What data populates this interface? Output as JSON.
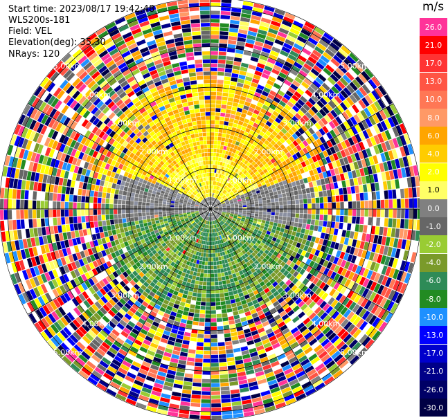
{
  "header": {
    "start_time": "Start time: 2023/08/17 19:42:48",
    "instrument": "WLS200s-181",
    "field": "Field: VEL",
    "elevation": "Elevation(deg): 35.30",
    "nrays": "NRays: 120"
  },
  "chart_data": {
    "type": "heatmap",
    "projection": "polar PPI",
    "field": "VEL",
    "rays": 120,
    "range_rings_km": [
      1.0,
      2.0,
      3.0,
      4.0,
      5.0
    ],
    "range_labels": [
      "1.00km",
      "2.00km",
      "3.00km",
      "4.00km",
      "5.00km"
    ],
    "max_range_km": 5.2,
    "colorbar": {
      "unit": "m/s",
      "levels": [
        {
          "label": "26.0",
          "color": "#ff3399"
        },
        {
          "label": "21.0",
          "color": "#ff0000"
        },
        {
          "label": "17.0",
          "color": "#ff3333"
        },
        {
          "label": "13.0",
          "color": "#ff5544"
        },
        {
          "label": "10.0",
          "color": "#ff7755"
        },
        {
          "label": "8.0",
          "color": "#ff9966"
        },
        {
          "label": "6.0",
          "color": "#ffa500"
        },
        {
          "label": "4.0",
          "color": "#ffcc00"
        },
        {
          "label": "2.0",
          "color": "#ffff00"
        },
        {
          "label": "1.0",
          "color": "#ffff66"
        },
        {
          "label": "0.0",
          "color": "#808080"
        },
        {
          "label": "-1.0",
          "color": "#666666"
        },
        {
          "label": "-2.0",
          "color": "#99cc33"
        },
        {
          "label": "-4.0",
          "color": "#7a9a2a"
        },
        {
          "label": "-6.0",
          "color": "#2e8b57"
        },
        {
          "label": "-8.0",
          "color": "#228b22"
        },
        {
          "label": "-10.0",
          "color": "#1e90ff"
        },
        {
          "label": "-13.0",
          "color": "#0000ff"
        },
        {
          "label": "-17.0",
          "color": "#0000cc"
        },
        {
          "label": "-21.0",
          "color": "#000088"
        },
        {
          "label": "-26.0",
          "color": "#000066"
        },
        {
          "label": "-30.0",
          "color": "#000044"
        }
      ]
    },
    "pattern": {
      "north_near": "2.0 to 6.0 m/s (yellow/orange), extending to about 3 km",
      "south_near": "-2.0 to -8.0 m/s (green), extending to about 2.7 km",
      "east_west_near": "0.0 to -1.0 m/s (grey)",
      "outer": "noise beyond about 3 km"
    }
  }
}
